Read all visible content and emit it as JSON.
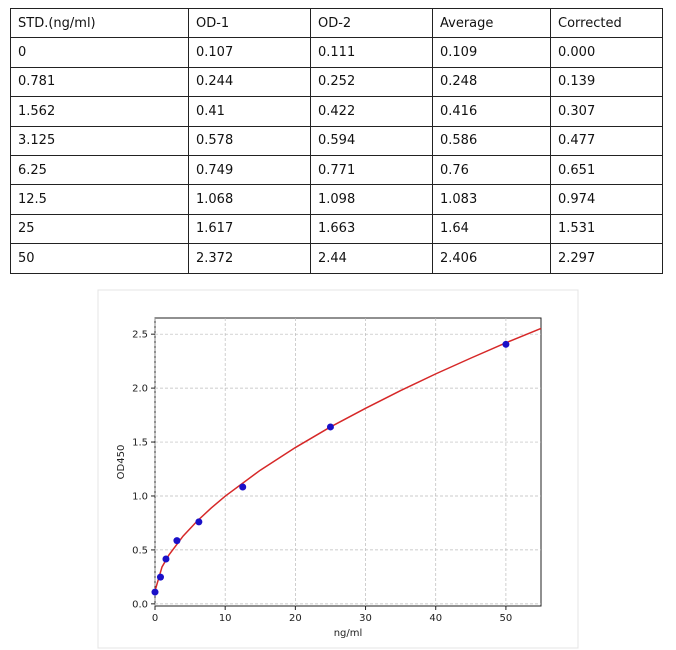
{
  "table": {
    "header": [
      "STD.(ng/ml)",
      "OD-1",
      "OD-2",
      "Average",
      "Corrected"
    ],
    "rows": [
      [
        "0",
        "0.107",
        "0.111",
        "0.109",
        "0.000"
      ],
      [
        "0.781",
        "0.244",
        "0.252",
        "0.248",
        "0.139"
      ],
      [
        "1.562",
        "0.41",
        "0.422",
        "0.416",
        "0.307"
      ],
      [
        "3.125",
        "0.578",
        "0.594",
        "0.586",
        "0.477"
      ],
      [
        "6.25",
        "0.749",
        "0.771",
        "0.76",
        "0.651"
      ],
      [
        "12.5",
        "1.068",
        "1.098",
        "1.083",
        "0.974"
      ],
      [
        "25",
        "1.617",
        "1.663",
        "1.64",
        "1.531"
      ],
      [
        "50",
        "2.372",
        "2.44",
        "2.406",
        "2.297"
      ]
    ]
  },
  "chart_data": {
    "type": "scatter",
    "xlabel": "ng/ml",
    "ylabel": "OD450",
    "xlim": [
      0,
      55
    ],
    "ylim": [
      -0.02,
      2.65
    ],
    "xticks": [
      0,
      10,
      20,
      30,
      40,
      50
    ],
    "yticks": [
      {
        "value": 0,
        "label": "0.0"
      },
      {
        "value": 0.5,
        "label": "0.5"
      },
      {
        "value": 1,
        "label": "1.0"
      },
      {
        "value": 1.5,
        "label": "1.5"
      },
      {
        "value": 2,
        "label": "2.0"
      },
      {
        "value": 2.5,
        "label": "2.5"
      }
    ],
    "grid": true,
    "series": [
      {
        "type": "scatter",
        "color": "#1a10c8",
        "x": [
          0,
          0.781,
          1.562,
          3.125,
          6.25,
          12.5,
          25,
          50
        ],
        "values": [
          0.109,
          0.248,
          0.416,
          0.586,
          0.76,
          1.083,
          1.64,
          2.406
        ]
      },
      {
        "type": "line",
        "color": "#d62828",
        "x": [
          0,
          1,
          2,
          4,
          6,
          8,
          10,
          15,
          20,
          25,
          30,
          35,
          40,
          45,
          50,
          55
        ],
        "values": [
          0.12,
          0.342,
          0.455,
          0.628,
          0.767,
          0.888,
          0.998,
          1.239,
          1.449,
          1.64,
          1.813,
          1.977,
          2.132,
          2.278,
          2.42,
          2.553
        ]
      }
    ]
  }
}
